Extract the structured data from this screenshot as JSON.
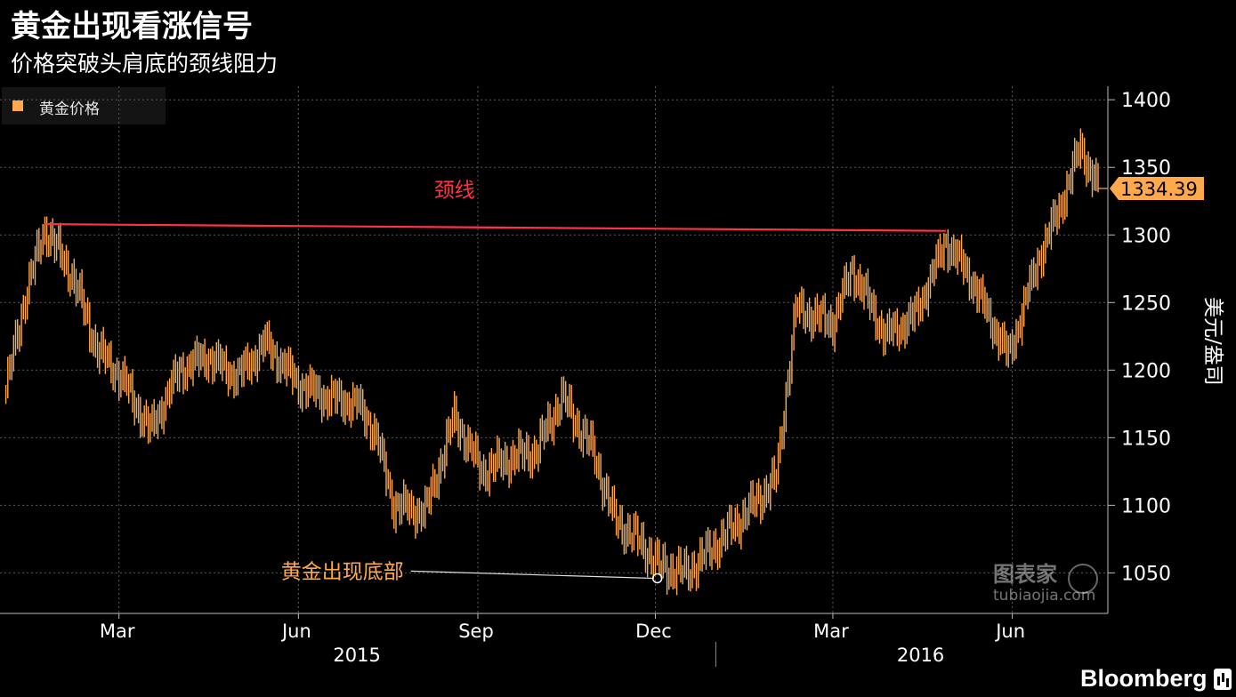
{
  "header": {
    "title": "黄金出现看涨信号",
    "subtitle": "价格突破头肩底的颈线阻力"
  },
  "brand": {
    "name": "Bloomberg",
    "icon": "bloomberg-terminal-icon"
  },
  "watermark": {
    "zh": "图表家",
    "en": "tubiaojia.com"
  },
  "chart_data": {
    "type": "line",
    "legend": {
      "entries": [
        "黄金价格"
      ],
      "placement": "top-left"
    },
    "series": [
      {
        "name": "黄金价格",
        "color": "#ffa94d",
        "x": [
          "2015-01-02",
          "2015-01-12",
          "2015-01-22",
          "2015-02-05",
          "2015-02-18",
          "2015-03-02",
          "2015-03-17",
          "2015-04-01",
          "2015-04-15",
          "2015-05-01",
          "2015-05-15",
          "2015-06-01",
          "2015-06-15",
          "2015-07-01",
          "2015-07-10",
          "2015-07-20",
          "2015-08-05",
          "2015-08-20",
          "2015-09-03",
          "2015-09-18",
          "2015-10-01",
          "2015-10-14",
          "2015-10-30",
          "2015-11-10",
          "2015-11-25",
          "2015-12-03",
          "2015-12-17",
          "2016-01-04",
          "2016-01-20",
          "2016-02-01",
          "2016-02-11",
          "2016-03-01",
          "2016-03-11",
          "2016-03-28",
          "2016-04-12",
          "2016-04-28",
          "2016-05-10",
          "2016-05-30",
          "2016-06-15",
          "2016-06-24",
          "2016-07-06",
          "2016-07-15"
        ],
        "values": [
          1185,
          1255,
          1305,
          1270,
          1215,
          1195,
          1155,
          1200,
          1210,
          1195,
          1220,
          1190,
          1180,
          1175,
          1155,
          1100,
          1095,
          1165,
          1125,
          1135,
          1140,
          1180,
          1140,
          1090,
          1070,
          1055,
          1050,
          1075,
          1100,
          1120,
          1245,
          1235,
          1275,
          1225,
          1240,
          1295,
          1270,
          1210,
          1285,
          1315,
          1365,
          1334.39
        ]
      }
    ],
    "current_value": "1334.39",
    "y_axis": {
      "label": "美元/盎司",
      "position": "right",
      "range": [
        1020,
        1410
      ],
      "ticks": [
        1050,
        1100,
        1150,
        1200,
        1250,
        1300,
        1350,
        1400
      ]
    },
    "x_axis": {
      "month_ticks": [
        {
          "label": "Mar",
          "date": "2015-03-01"
        },
        {
          "label": "Jun",
          "date": "2015-06-01"
        },
        {
          "label": "Sep",
          "date": "2015-09-01"
        },
        {
          "label": "Dec",
          "date": "2015-12-01"
        },
        {
          "label": "Mar",
          "date": "2016-03-01"
        },
        {
          "label": "Jun",
          "date": "2016-06-01"
        }
      ],
      "year_labels": [
        {
          "label": "2015",
          "date": "2015-07-01"
        },
        {
          "label": "2016",
          "date": "2016-04-15"
        }
      ],
      "year_divider": "2016-01-01",
      "range": [
        "2014-12-30",
        "2016-07-20"
      ]
    },
    "grid": true,
    "annotations": [
      {
        "id": "neckline",
        "text": "颈线",
        "color": "#ff3344",
        "line_from": {
          "date": "2015-01-22",
          "value": 1308
        },
        "line_to": {
          "date": "2016-04-28",
          "value": 1303
        },
        "text_anchor": {
          "date": "2015-08-20",
          "value": 1328
        }
      },
      {
        "id": "bottom",
        "text": "黄金出现底部",
        "color": "#ffa94d",
        "point": {
          "date": "2015-12-02",
          "value": 1046
        },
        "text_anchor": {
          "date": "2015-07-25",
          "value": 1050
        }
      }
    ]
  }
}
